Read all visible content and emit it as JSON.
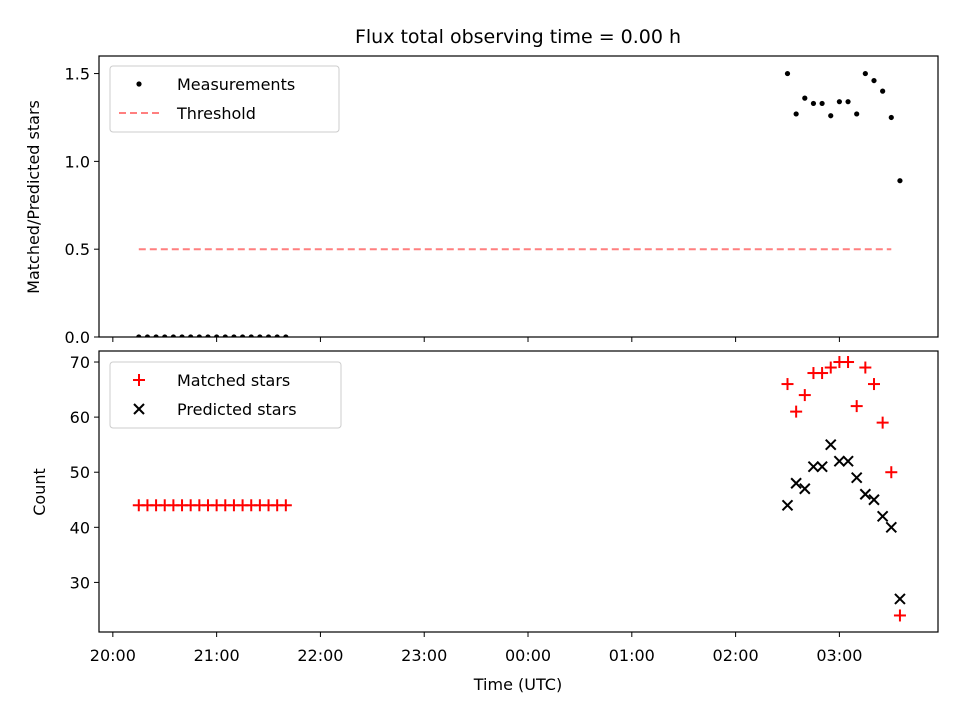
{
  "chart_data": [
    {
      "type": "scatter",
      "title": "Flux total observing time = 0.00 h",
      "ylabel": "Matched/Predicted stars",
      "xlabel": "",
      "ylim": [
        0,
        1.6
      ],
      "yticks": [
        {
          "value": 0.0,
          "label": "0.0"
        },
        {
          "value": 0.5,
          "label": "0.5"
        },
        {
          "value": 1.0,
          "label": "1.0"
        },
        {
          "value": 1.5,
          "label": "1.5"
        }
      ],
      "legend": "upper-left",
      "series": [
        {
          "name": "Measurements",
          "marker": "dot",
          "color": "#000000",
          "x": [
            "20:15",
            "20:20",
            "20:25",
            "20:30",
            "20:35",
            "20:40",
            "20:45",
            "20:50",
            "20:55",
            "21:00",
            "21:05",
            "21:10",
            "21:15",
            "21:20",
            "21:25",
            "21:30",
            "21:35",
            "21:40",
            "02:30",
            "02:35",
            "02:40",
            "02:45",
            "02:50",
            "02:55",
            "03:00",
            "03:05",
            "03:10",
            "03:15",
            "03:20",
            "03:25",
            "03:30",
            "03:35"
          ],
          "y": [
            0,
            0,
            0,
            0,
            0,
            0,
            0,
            0,
            0,
            0,
            0,
            0,
            0,
            0,
            0,
            0,
            0,
            0,
            1.5,
            1.27,
            1.36,
            1.33,
            1.33,
            1.26,
            1.34,
            1.34,
            1.27,
            1.5,
            1.46,
            1.4,
            1.25,
            0.89
          ]
        },
        {
          "name": "Threshold",
          "line": "dashed",
          "color": "#ff7f7f",
          "x": [
            "20:15",
            "03:30"
          ],
          "y": [
            0.5,
            0.5
          ]
        }
      ]
    },
    {
      "type": "scatter",
      "xlabel": "Time (UTC)",
      "ylabel": "Count",
      "ylim": [
        21,
        72
      ],
      "yticks": [
        {
          "value": 30,
          "label": "30"
        },
        {
          "value": 40,
          "label": "40"
        },
        {
          "value": 50,
          "label": "50"
        },
        {
          "value": 60,
          "label": "60"
        },
        {
          "value": 70,
          "label": "70"
        }
      ],
      "xticks": [
        {
          "value": "20:00",
          "label": "20:00"
        },
        {
          "value": "21:00",
          "label": "21:00"
        },
        {
          "value": "22:00",
          "label": "22:00"
        },
        {
          "value": "23:00",
          "label": "23:00"
        },
        {
          "value": "00:00",
          "label": "00:00"
        },
        {
          "value": "01:00",
          "label": "01:00"
        },
        {
          "value": "02:00",
          "label": "02:00"
        },
        {
          "value": "03:00",
          "label": "03:00"
        }
      ],
      "xlim": [
        "19:52",
        "03:57"
      ],
      "legend": "upper-left",
      "series": [
        {
          "name": "Matched stars",
          "marker": "plus",
          "color": "#ff0000",
          "x": [
            "20:15",
            "20:20",
            "20:25",
            "20:30",
            "20:35",
            "20:40",
            "20:45",
            "20:50",
            "20:55",
            "21:00",
            "21:05",
            "21:10",
            "21:15",
            "21:20",
            "21:25",
            "21:30",
            "21:35",
            "21:40",
            "02:30",
            "02:35",
            "02:40",
            "02:45",
            "02:50",
            "02:55",
            "03:00",
            "03:05",
            "03:10",
            "03:15",
            "03:20",
            "03:25",
            "03:30",
            "03:35"
          ],
          "y": [
            44,
            44,
            44,
            44,
            44,
            44,
            44,
            44,
            44,
            44,
            44,
            44,
            44,
            44,
            44,
            44,
            44,
            44,
            66,
            61,
            64,
            68,
            68,
            69,
            70,
            70,
            62,
            69,
            66,
            59,
            50,
            24
          ]
        },
        {
          "name": "Predicted stars",
          "marker": "x",
          "color": "#000000",
          "x": [
            "02:30",
            "02:35",
            "02:40",
            "02:45",
            "02:50",
            "02:55",
            "03:00",
            "03:05",
            "03:10",
            "03:15",
            "03:20",
            "03:25",
            "03:30",
            "03:35"
          ],
          "y": [
            44,
            48,
            47,
            51,
            51,
            55,
            52,
            52,
            49,
            46,
            45,
            42,
            40,
            27
          ]
        }
      ]
    }
  ]
}
